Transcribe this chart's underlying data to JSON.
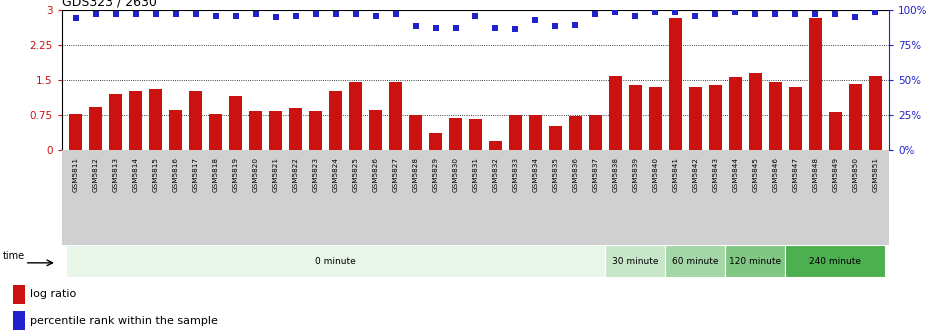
{
  "title": "GDS323 / 2630",
  "samples": [
    "GSM5811",
    "GSM5812",
    "GSM5813",
    "GSM5814",
    "GSM5815",
    "GSM5816",
    "GSM5817",
    "GSM5818",
    "GSM5819",
    "GSM5820",
    "GSM5821",
    "GSM5822",
    "GSM5823",
    "GSM5824",
    "GSM5825",
    "GSM5826",
    "GSM5827",
    "GSM5828",
    "GSM5829",
    "GSM5830",
    "GSM5831",
    "GSM5832",
    "GSM5833",
    "GSM5834",
    "GSM5835",
    "GSM5836",
    "GSM5837",
    "GSM5838",
    "GSM5839",
    "GSM5840",
    "GSM5841",
    "GSM5842",
    "GSM5843",
    "GSM5844",
    "GSM5845",
    "GSM5846",
    "GSM5847",
    "GSM5848",
    "GSM5849",
    "GSM5850",
    "GSM5851"
  ],
  "log_ratio": [
    0.76,
    0.92,
    1.2,
    1.25,
    1.3,
    0.85,
    1.25,
    0.76,
    1.15,
    0.82,
    0.82,
    0.9,
    0.82,
    1.25,
    1.45,
    0.85,
    1.45,
    0.75,
    0.35,
    0.68,
    0.65,
    0.18,
    0.75,
    0.75,
    0.5,
    0.73,
    0.75,
    1.58,
    1.38,
    1.35,
    2.82,
    1.35,
    1.38,
    1.55,
    1.65,
    1.45,
    1.35,
    2.82,
    0.8,
    1.42,
    1.58
  ],
  "percentile": [
    2.82,
    2.91,
    2.91,
    2.91,
    2.91,
    2.91,
    2.91,
    2.88,
    2.88,
    2.91,
    2.85,
    2.88,
    2.91,
    2.91,
    2.91,
    2.88,
    2.91,
    2.65,
    2.62,
    2.62,
    2.88,
    2.62,
    2.6,
    2.78,
    2.65,
    2.68,
    2.91,
    2.95,
    2.88,
    2.95,
    2.95,
    2.88,
    2.91,
    2.95,
    2.91,
    2.91,
    2.91,
    2.91,
    2.91,
    2.85,
    2.95
  ],
  "time_groups": [
    {
      "label": "0 minute",
      "start": 0,
      "end": 27,
      "color": "#e8f5e9"
    },
    {
      "label": "30 minute",
      "start": 27,
      "end": 30,
      "color": "#c8e6c9"
    },
    {
      "label": "60 minute",
      "start": 30,
      "end": 33,
      "color": "#a5d6a7"
    },
    {
      "label": "120 minute",
      "start": 33,
      "end": 36,
      "color": "#81c784"
    },
    {
      "label": "240 minute",
      "start": 36,
      "end": 41,
      "color": "#4caf50"
    }
  ],
  "bar_color": "#cc1111",
  "dot_color": "#2222cc",
  "ylim_left": [
    0,
    3.0
  ],
  "ylim_right": [
    0,
    100
  ],
  "yticks_left": [
    0,
    0.75,
    1.5,
    2.25,
    3.0
  ],
  "ytick_labels_left": [
    "0",
    "0.75",
    "1.5",
    "2.25",
    "3"
  ],
  "yticks_right_vals": [
    0,
    25,
    50,
    75,
    100
  ],
  "ytick_labels_right": [
    "0%",
    "25%",
    "50%",
    "75%",
    "100%"
  ],
  "dotted_lines": [
    0.75,
    1.5,
    2.25
  ],
  "bar_width": 0.65,
  "bg_color": "#ffffff",
  "tick_bg_color": "#d0d0d0"
}
